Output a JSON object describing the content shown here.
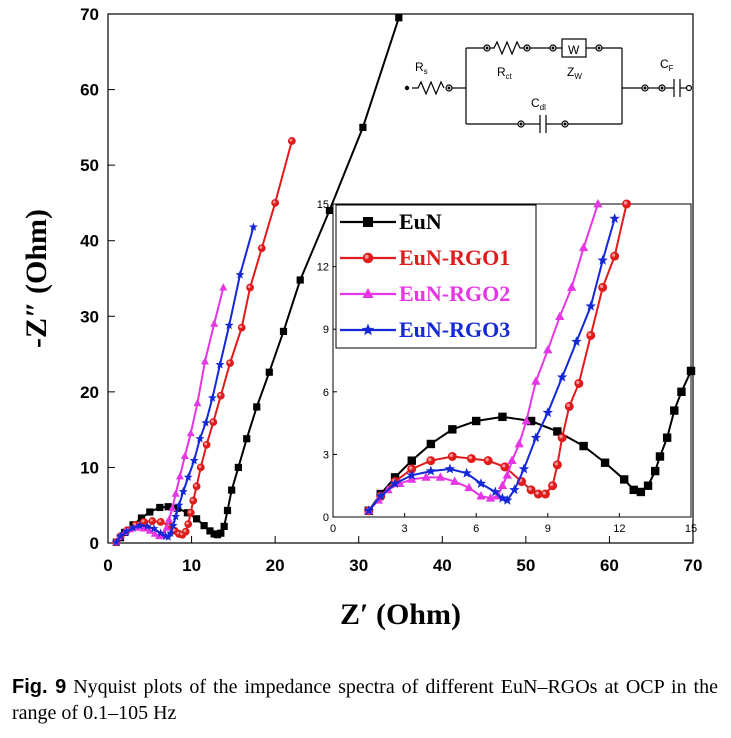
{
  "figure": {
    "caption_label": "Fig. 9",
    "caption_text": "Nyquist plots of the impedance spectra of different EuN–RGOs at OCP in the range of 0.1–105 Hz"
  },
  "circuit": {
    "labels": [
      {
        "main": "R",
        "sub": "s"
      },
      {
        "main": "R",
        "sub": "ct"
      },
      {
        "main": "W",
        "sub": ""
      },
      {
        "main": "Z",
        "sub": "W"
      },
      {
        "main": "C",
        "sub": "dl"
      },
      {
        "main": "C",
        "sub": "F"
      }
    ]
  },
  "colors": {
    "EuN": "#000000",
    "EuN-RGO1": "#e01b1b",
    "EuN-RGO2": "#e535e5",
    "EuN-RGO3": "#1428d8"
  },
  "chart_data": [
    {
      "type": "scatter",
      "role": "main",
      "xlabel": "Z′ (Ohm)",
      "ylabel": "-Z″ (Ohm)",
      "xlim": [
        0,
        70
      ],
      "ylim": [
        0,
        70
      ],
      "xticks": [
        0,
        10,
        20,
        30,
        40,
        50,
        60,
        70
      ],
      "yticks": [
        0,
        10,
        20,
        30,
        40,
        50,
        60,
        70
      ],
      "series": [
        {
          "name": "EuN",
          "marker": "square",
          "x": [
            1.0,
            1.5,
            2.0,
            3.0,
            4.0,
            5.0,
            6.2,
            7.2,
            8.3,
            9.5,
            10.6,
            11.5,
            12.2,
            12.7,
            13.1,
            13.5,
            13.9,
            14.3,
            14.8,
            15.6,
            16.6,
            17.8,
            19.3,
            21.0,
            23.0,
            26.5,
            30.5,
            34.8
          ],
          "y": [
            0.1,
            0.7,
            1.4,
            2.4,
            3.3,
            4.1,
            4.7,
            4.8,
            4.6,
            4.0,
            3.2,
            2.3,
            1.6,
            1.2,
            1.1,
            1.3,
            2.2,
            4.3,
            7.0,
            10.0,
            13.8,
            18.0,
            22.6,
            28.0,
            34.8,
            44.0,
            55.0,
            69.5
          ]
        },
        {
          "name": "EuN-RGO1",
          "marker": "circle",
          "x": [
            1.0,
            1.5,
            2.3,
            3.3,
            4.3,
            5.3,
            6.3,
            7.3,
            8.0,
            8.5,
            8.9,
            9.3,
            9.6,
            9.9,
            10.2,
            10.6,
            11.1,
            11.8,
            12.6,
            13.5,
            14.6,
            16.0,
            17.0,
            18.4,
            20.0,
            22.0
          ],
          "y": [
            0.1,
            0.9,
            1.7,
            2.4,
            2.8,
            2.9,
            2.8,
            2.3,
            1.6,
            1.2,
            1.1,
            1.5,
            2.5,
            4.0,
            5.6,
            7.5,
            10.0,
            13.0,
            16.0,
            19.5,
            23.8,
            28.5,
            33.8,
            39.0,
            45.0,
            53.2
          ]
        },
        {
          "name": "EuN-RGO2",
          "marker": "triangle",
          "x": [
            1.0,
            1.4,
            2.0,
            2.7,
            3.5,
            4.3,
            5.0,
            5.6,
            6.1,
            6.4,
            6.7,
            7.0,
            7.3,
            7.7,
            8.1,
            8.6,
            9.2,
            9.9,
            10.7,
            11.6,
            12.7,
            13.8
          ],
          "y": [
            0.1,
            0.8,
            1.4,
            1.8,
            2.0,
            1.9,
            1.6,
            1.2,
            0.9,
            0.9,
            1.2,
            2.0,
            3.1,
            4.6,
            6.5,
            8.8,
            11.5,
            14.5,
            18.5,
            24.0,
            29.0,
            33.8
          ]
        },
        {
          "name": "EuN-RGO3",
          "marker": "star",
          "x": [
            1.0,
            1.5,
            2.2,
            3.0,
            3.8,
            4.7,
            5.5,
            6.3,
            6.9,
            7.2,
            7.5,
            7.8,
            8.1,
            8.5,
            9.0,
            9.6,
            10.3,
            11.0,
            11.7,
            12.5,
            13.4,
            14.5,
            15.8,
            17.4
          ],
          "y": [
            0.1,
            0.9,
            1.5,
            2.0,
            2.3,
            2.2,
            1.9,
            1.3,
            0.9,
            0.8,
            1.3,
            2.3,
            3.5,
            5.0,
            6.8,
            8.7,
            10.9,
            13.8,
            15.9,
            19.2,
            23.6,
            28.8,
            35.5,
            41.8
          ]
        }
      ]
    },
    {
      "type": "scatter",
      "role": "inset",
      "xlim": [
        0,
        15
      ],
      "ylim": [
        0,
        15
      ],
      "xticks": [
        0,
        3,
        6,
        9,
        12,
        15
      ],
      "yticks": [
        0,
        3,
        6,
        9,
        12,
        15
      ],
      "legend_position": "top-left",
      "series": [
        {
          "name": "EuN",
          "marker": "square",
          "x": [
            1.5,
            2.0,
            2.6,
            3.3,
            4.1,
            5.0,
            6.0,
            7.1,
            8.3,
            9.4,
            10.5,
            11.4,
            12.2,
            12.6,
            12.9,
            13.2,
            13.5,
            13.7,
            14.0,
            14.3,
            14.6,
            15.0
          ],
          "y": [
            0.3,
            1.1,
            1.9,
            2.7,
            3.5,
            4.2,
            4.6,
            4.8,
            4.6,
            4.1,
            3.4,
            2.6,
            1.8,
            1.3,
            1.2,
            1.5,
            2.2,
            2.9,
            3.8,
            5.1,
            6.0,
            7.0
          ]
        },
        {
          "name": "EuN-RGO1",
          "marker": "circle",
          "x": [
            1.5,
            2.0,
            2.6,
            3.3,
            4.1,
            5.0,
            5.8,
            6.5,
            7.2,
            7.9,
            8.3,
            8.6,
            8.9,
            9.2,
            9.4,
            9.6,
            9.9,
            10.3,
            10.8,
            11.3,
            11.8,
            12.3
          ],
          "y": [
            0.3,
            1.0,
            1.7,
            2.3,
            2.7,
            2.9,
            2.8,
            2.7,
            2.4,
            1.7,
            1.3,
            1.1,
            1.1,
            1.5,
            2.5,
            3.8,
            5.3,
            6.4,
            8.7,
            11.0,
            12.5,
            15.0
          ]
        },
        {
          "name": "EuN-RGO2",
          "marker": "triangle",
          "x": [
            1.5,
            1.9,
            2.3,
            2.8,
            3.3,
            3.9,
            4.5,
            5.1,
            5.7,
            6.2,
            6.6,
            6.9,
            7.1,
            7.3,
            7.5,
            7.8,
            8.1,
            8.5,
            9.0,
            9.5,
            10.0,
            10.5,
            11.1
          ],
          "y": [
            0.3,
            0.8,
            1.3,
            1.6,
            1.8,
            1.9,
            1.9,
            1.7,
            1.4,
            1.0,
            0.9,
            1.0,
            1.5,
            2.0,
            2.7,
            3.5,
            4.6,
            6.5,
            8.0,
            9.6,
            11.0,
            12.9,
            15.0
          ]
        },
        {
          "name": "EuN-RGO3",
          "marker": "star",
          "x": [
            1.5,
            2.0,
            2.6,
            3.3,
            4.1,
            4.9,
            5.6,
            6.2,
            6.8,
            7.1,
            7.3,
            7.6,
            8.0,
            8.5,
            9.0,
            9.6,
            10.2,
            10.8,
            11.3,
            11.8
          ],
          "y": [
            0.3,
            1.0,
            1.6,
            2.0,
            2.2,
            2.3,
            2.1,
            1.6,
            1.2,
            0.9,
            0.8,
            1.3,
            2.3,
            3.8,
            5.0,
            6.7,
            8.4,
            10.1,
            12.3,
            14.3
          ]
        }
      ]
    }
  ]
}
